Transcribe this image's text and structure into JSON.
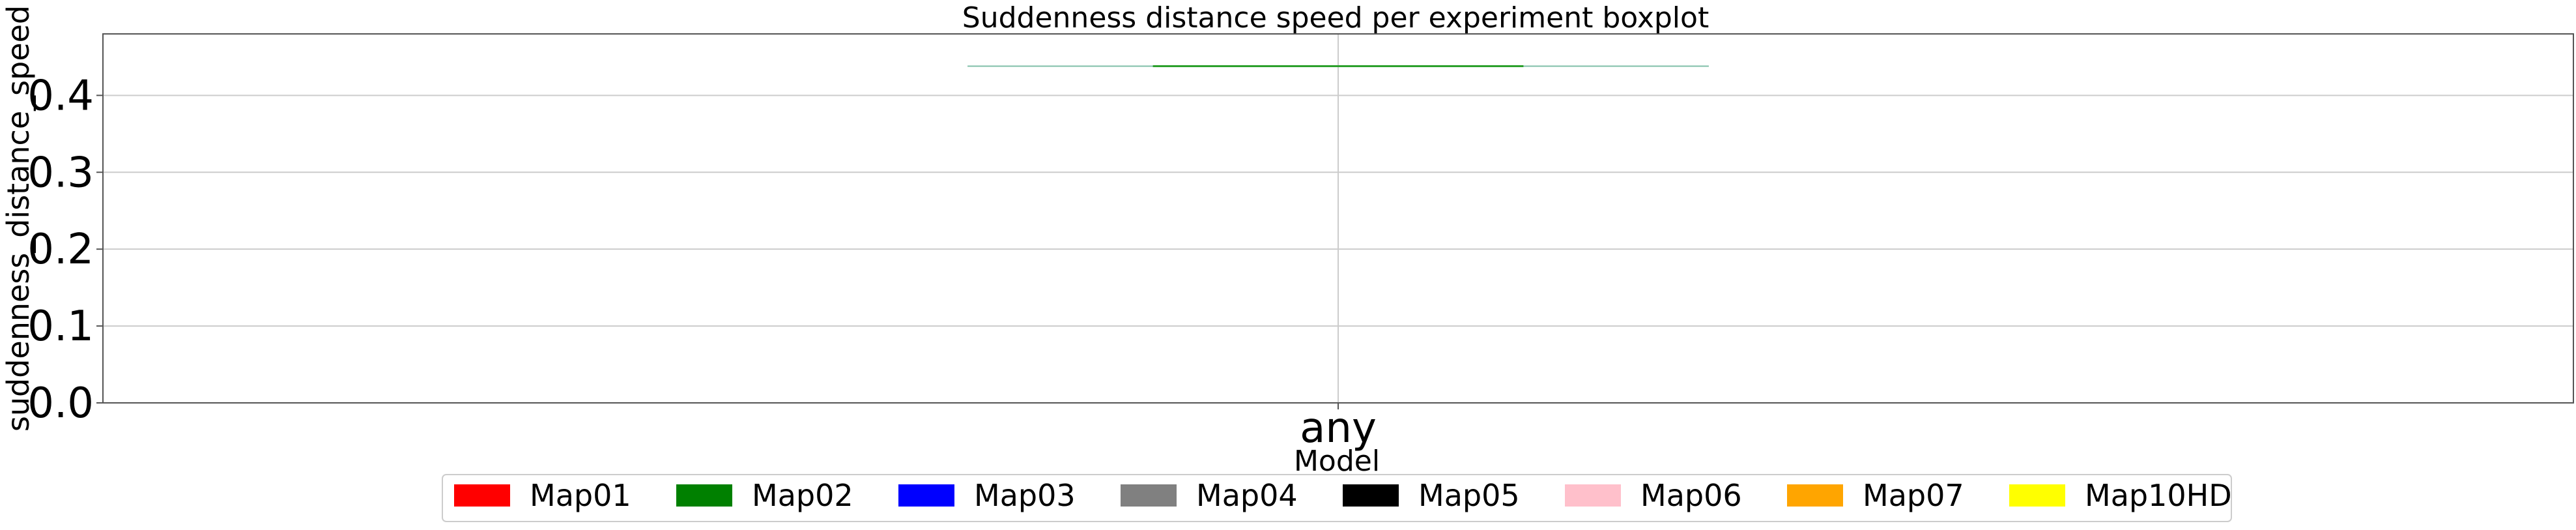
{
  "chart_data": {
    "type": "boxplot",
    "title": "Suddenness distance speed per experiment boxplot",
    "xlabel": "Model",
    "ylabel": "suddenness_distance_speed",
    "categories": [
      "any"
    ],
    "ylim": [
      0,
      0.48
    ],
    "yticks": [
      0.0,
      0.1,
      0.2,
      0.3,
      0.4
    ],
    "ytick_labels": [
      "0.0",
      "0.1",
      "0.2",
      "0.3",
      "0.4"
    ],
    "grid": true,
    "legend_position": "bottom-center",
    "boxes": [
      {
        "category": "any",
        "min": 0.438,
        "q1": 0.438,
        "median": 0.438,
        "q3": 0.438,
        "max": 0.438
      }
    ],
    "legend": [
      {
        "label": "Map01",
        "color": "#ff0000"
      },
      {
        "label": "Map02",
        "color": "#008000"
      },
      {
        "label": "Map03",
        "color": "#0000ff"
      },
      {
        "label": "Map04",
        "color": "#808080"
      },
      {
        "label": "Map05",
        "color": "#000000"
      },
      {
        "label": "Map06",
        "color": "#ffc0cb"
      },
      {
        "label": "Map07",
        "color": "#ffa500"
      },
      {
        "label": "Map10HD",
        "color": "#ffff00"
      }
    ],
    "colors": {
      "grid": "#cccccc",
      "axes": "#555555",
      "median": "#2ca02c",
      "whisker": "#7fbfa8"
    }
  }
}
